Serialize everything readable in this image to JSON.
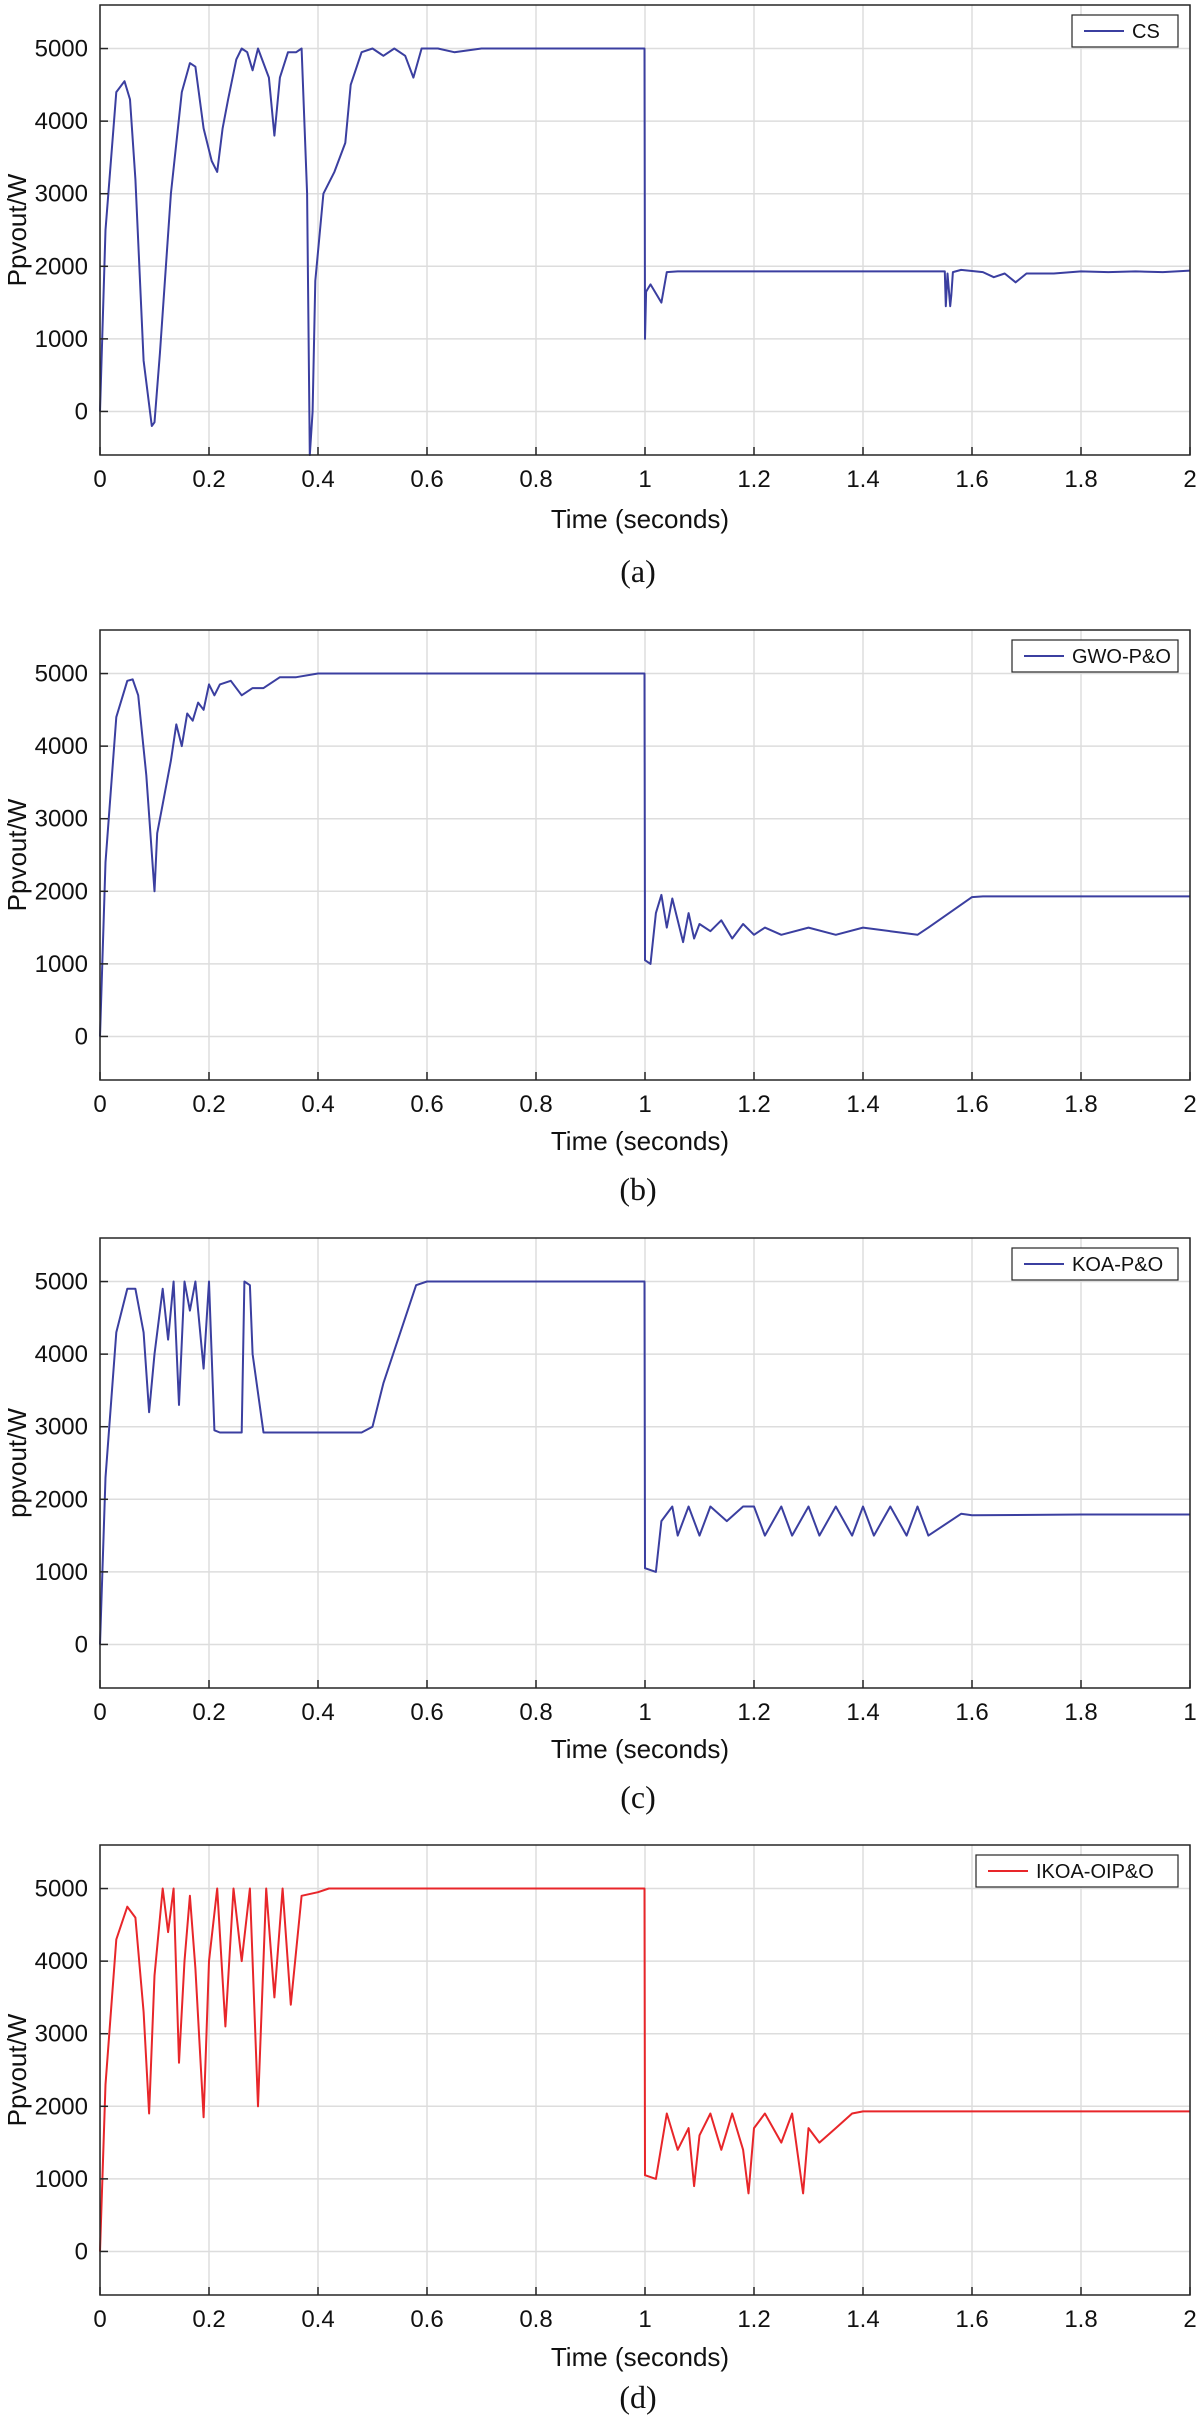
{
  "chart_data": [
    {
      "type": "line",
      "caption": "(a)",
      "xlabel": "Time (seconds)",
      "ylabel": "Ppvout/W",
      "xlim": [
        0,
        2
      ],
      "ylim": [
        -600,
        5600
      ],
      "xticks": [
        "0",
        "0.2",
        "0.4",
        "0.6",
        "0.8",
        "1",
        "1.2",
        "1.4",
        "1.6",
        "1.8",
        "2"
      ],
      "yticks": [
        "0",
        "1000",
        "2000",
        "3000",
        "4000",
        "5000"
      ],
      "grid": true,
      "legend": "top-right",
      "series": [
        {
          "name": "CS",
          "color": "#3b3fa0",
          "x": [
            0,
            0.01,
            0.03,
            0.045,
            0.055,
            0.065,
            0.08,
            0.095,
            0.1,
            0.11,
            0.13,
            0.15,
            0.165,
            0.175,
            0.19,
            0.205,
            0.215,
            0.225,
            0.235,
            0.25,
            0.26,
            0.27,
            0.28,
            0.29,
            0.31,
            0.32,
            0.33,
            0.345,
            0.36,
            0.37,
            0.38,
            0.385,
            0.39,
            0.395,
            0.41,
            0.43,
            0.45,
            0.46,
            0.48,
            0.5,
            0.52,
            0.54,
            0.56,
            0.575,
            0.59,
            0.62,
            0.65,
            0.7,
            0.8,
            0.9,
            0.999,
            1.0,
            1.002,
            1.01,
            1.03,
            1.04,
            1.06,
            1.1,
            1.3,
            1.5,
            1.55,
            1.552,
            1.555,
            1.56,
            1.562,
            1.565,
            1.58,
            1.62,
            1.64,
            1.66,
            1.68,
            1.7,
            1.75,
            1.8,
            1.85,
            1.9,
            1.95,
            2.0
          ],
          "y": [
            0,
            2500,
            4400,
            4550,
            4300,
            3200,
            700,
            -200,
            -150,
            800,
            3000,
            4400,
            4800,
            4750,
            3900,
            3450,
            3300,
            3900,
            4300,
            4850,
            5000,
            4950,
            4700,
            5000,
            4600,
            3800,
            4600,
            4950,
            4950,
            5000,
            3000,
            -600,
            0,
            1800,
            3000,
            3300,
            3700,
            4500,
            4950,
            5000,
            4900,
            5000,
            4900,
            4600,
            5000,
            5000,
            4950,
            5000,
            5000,
            5000,
            5000,
            1000,
            1650,
            1750,
            1500,
            1920,
            1930,
            1930,
            1930,
            1930,
            1930,
            1450,
            1900,
            1450,
            1600,
            1920,
            1950,
            1920,
            1850,
            1900,
            1780,
            1900,
            1900,
            1930,
            1920,
            1930,
            1920,
            1940
          ]
        }
      ]
    },
    {
      "type": "line",
      "caption": "(b)",
      "xlabel": "Time (seconds)",
      "ylabel": "Ppvout/W",
      "xlim": [
        0,
        2
      ],
      "ylim": [
        -600,
        5600
      ],
      "xticks": [
        "0",
        "0.2",
        "0.4",
        "0.6",
        "0.8",
        "1",
        "1.2",
        "1.4",
        "1.6",
        "1.8",
        "2"
      ],
      "yticks": [
        "0",
        "1000",
        "2000",
        "3000",
        "4000",
        "5000"
      ],
      "grid": true,
      "legend": "top-right",
      "series": [
        {
          "name": "GWO-P&O",
          "color": "#3b3fa0",
          "x": [
            0,
            0.01,
            0.03,
            0.05,
            0.06,
            0.07,
            0.085,
            0.1,
            0.105,
            0.115,
            0.13,
            0.14,
            0.15,
            0.16,
            0.17,
            0.18,
            0.19,
            0.2,
            0.21,
            0.22,
            0.24,
            0.26,
            0.28,
            0.3,
            0.33,
            0.36,
            0.4,
            0.5,
            0.7,
            0.9,
            0.999,
            1.0,
            1.01,
            1.02,
            1.03,
            1.04,
            1.05,
            1.06,
            1.07,
            1.08,
            1.09,
            1.1,
            1.12,
            1.14,
            1.16,
            1.18,
            1.2,
            1.22,
            1.25,
            1.3,
            1.35,
            1.4,
            1.45,
            1.5,
            1.52,
            1.6,
            1.62,
            1.8,
            2.0
          ],
          "y": [
            0,
            2400,
            4400,
            4900,
            4920,
            4700,
            3600,
            2000,
            2800,
            3200,
            3800,
            4300,
            4000,
            4450,
            4350,
            4600,
            4500,
            4850,
            4700,
            4850,
            4900,
            4700,
            4800,
            4800,
            4950,
            4950,
            5000,
            5000,
            5000,
            5000,
            5000,
            1050,
            1000,
            1700,
            1950,
            1500,
            1900,
            1600,
            1300,
            1700,
            1350,
            1550,
            1450,
            1600,
            1350,
            1550,
            1400,
            1500,
            1400,
            1500,
            1400,
            1500,
            1450,
            1400,
            1500,
            1920,
            1930,
            1930,
            1930
          ]
        }
      ]
    },
    {
      "type": "line",
      "caption": "(c)",
      "xlabel": "Time (seconds)",
      "ylabel": "ppvout/W",
      "xlim": [
        0,
        2
      ],
      "ylim": [
        -600,
        5600
      ],
      "xticks": [
        "0",
        "0.2",
        "0.4",
        "0.6",
        "0.8",
        "1",
        "1.2",
        "1.4",
        "1.6",
        "1.8",
        "1"
      ],
      "yticks": [
        "0",
        "1000",
        "2000",
        "3000",
        "4000",
        "5000"
      ],
      "grid": true,
      "legend": "top-right",
      "series": [
        {
          "name": "KOA-P&O",
          "color": "#3b3fa0",
          "x": [
            0,
            0.01,
            0.03,
            0.05,
            0.065,
            0.08,
            0.09,
            0.1,
            0.115,
            0.125,
            0.135,
            0.145,
            0.155,
            0.165,
            0.175,
            0.19,
            0.2,
            0.21,
            0.22,
            0.26,
            0.265,
            0.275,
            0.28,
            0.3,
            0.31,
            0.4,
            0.48,
            0.5,
            0.52,
            0.58,
            0.6,
            0.7,
            0.8,
            0.9,
            0.999,
            1.0,
            1.02,
            1.03,
            1.05,
            1.06,
            1.08,
            1.1,
            1.12,
            1.15,
            1.18,
            1.2,
            1.22,
            1.25,
            1.27,
            1.3,
            1.32,
            1.35,
            1.38,
            1.4,
            1.42,
            1.45,
            1.48,
            1.5,
            1.52,
            1.58,
            1.6,
            1.8,
            2.0
          ],
          "y": [
            0,
            2300,
            4300,
            4900,
            4900,
            4300,
            3200,
            4000,
            4900,
            4200,
            5000,
            3300,
            5000,
            4600,
            5000,
            3800,
            5000,
            2950,
            2920,
            2920,
            5000,
            4950,
            4000,
            2920,
            2920,
            2920,
            2920,
            3000,
            3600,
            4950,
            5000,
            5000,
            5000,
            5000,
            5000,
            1050,
            1000,
            1700,
            1900,
            1500,
            1900,
            1500,
            1900,
            1700,
            1900,
            1900,
            1500,
            1900,
            1500,
            1900,
            1500,
            1900,
            1500,
            1900,
            1500,
            1900,
            1500,
            1900,
            1500,
            1800,
            1780,
            1790,
            1790
          ]
        }
      ]
    },
    {
      "type": "line",
      "caption": "(d)",
      "xlabel": "Time (seconds)",
      "ylabel": "Ppvout/W",
      "xlim": [
        0,
        2
      ],
      "ylim": [
        -600,
        5600
      ],
      "xticks": [
        "0",
        "0.2",
        "0.4",
        "0.6",
        "0.8",
        "1",
        "1.2",
        "1.4",
        "1.6",
        "1.8",
        "2"
      ],
      "yticks": [
        "0",
        "1000",
        "2000",
        "3000",
        "4000",
        "5000"
      ],
      "grid": true,
      "legend": "top-right",
      "series": [
        {
          "name": "IKOA-OIP&O",
          "color": "#e8262a",
          "x": [
            0,
            0.01,
            0.03,
            0.05,
            0.065,
            0.08,
            0.09,
            0.1,
            0.115,
            0.125,
            0.135,
            0.145,
            0.155,
            0.165,
            0.175,
            0.19,
            0.2,
            0.215,
            0.23,
            0.245,
            0.26,
            0.275,
            0.29,
            0.305,
            0.32,
            0.335,
            0.35,
            0.37,
            0.4,
            0.42,
            0.6,
            0.8,
            0.999,
            1.0,
            1.02,
            1.04,
            1.06,
            1.08,
            1.09,
            1.1,
            1.12,
            1.14,
            1.16,
            1.18,
            1.19,
            1.2,
            1.22,
            1.25,
            1.27,
            1.29,
            1.3,
            1.32,
            1.35,
            1.38,
            1.4,
            1.6,
            1.8,
            2.0
          ],
          "y": [
            0,
            2300,
            4300,
            4750,
            4600,
            3300,
            1900,
            3800,
            5000,
            4400,
            5000,
            2600,
            4000,
            4900,
            3900,
            1850,
            4000,
            5000,
            3100,
            5000,
            4000,
            5000,
            2000,
            5000,
            3500,
            5000,
            3400,
            4900,
            4950,
            5000,
            5000,
            5000,
            5000,
            1050,
            1000,
            1900,
            1400,
            1700,
            900,
            1600,
            1900,
            1400,
            1900,
            1400,
            800,
            1700,
            1900,
            1500,
            1900,
            800,
            1700,
            1500,
            1700,
            1900,
            1930,
            1930,
            1930,
            1930
          ]
        }
      ]
    }
  ]
}
